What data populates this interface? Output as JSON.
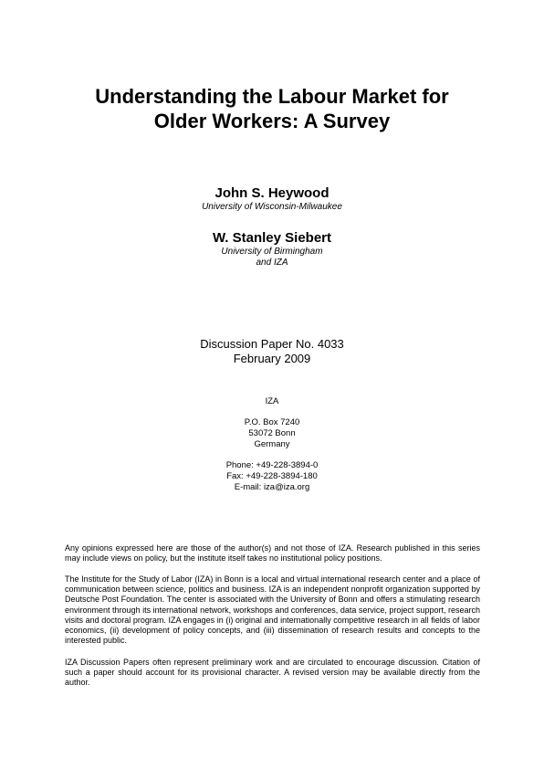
{
  "title": {
    "line1": "Understanding the Labour Market for",
    "line2": "Older Workers: A Survey"
  },
  "authors": [
    {
      "name": "John S. Heywood",
      "affiliation": [
        "University of Wisconsin-Milwaukee"
      ]
    },
    {
      "name": "W. Stanley Siebert",
      "affiliation": [
        "University of Birmingham",
        "and IZA"
      ]
    }
  ],
  "discussion_paper": {
    "number": "Discussion Paper No. 4033",
    "date": "February 2009"
  },
  "iza": {
    "name": "IZA",
    "address": [
      "P.O. Box 7240",
      "53072 Bonn",
      "Germany"
    ],
    "phone": "Phone: +49-228-3894-0",
    "fax": "Fax: +49-228-3894-180",
    "email": "E-mail: iza@iza.org"
  },
  "disclaimers": [
    "Any opinions expressed here are those of the author(s) and not those of IZA. Research published in this series may include views on policy, but the institute itself takes no institutional policy positions.",
    "The Institute for the Study of Labor (IZA) in Bonn is a local and virtual international research center and a place of communication between science, politics and business. IZA is an independent nonprofit organization supported by Deutsche Post Foundation. The center is associated with the University of Bonn and offers a stimulating research environment through its international network, workshops and conferences, data service, project support, research visits and doctoral program. IZA engages in (i) original and internationally competitive research in all fields of labor economics, (ii) development of policy concepts, and (iii) dissemination of research results and concepts to the interested public.",
    "IZA Discussion Papers often represent preliminary work and are circulated to encourage discussion. Citation of such a paper should account for its provisional character. A revised version may be available directly from the author."
  ]
}
